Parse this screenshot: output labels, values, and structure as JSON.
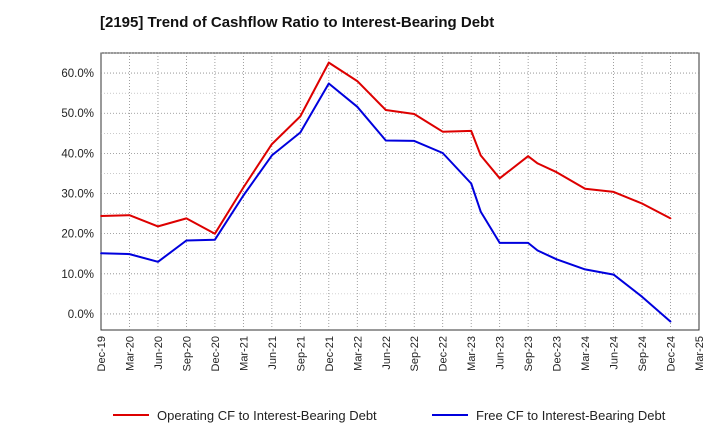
{
  "chart_data": {
    "type": "line",
    "title": "[2195]  Trend of Cashflow Ratio to Interest-Bearing Debt",
    "xlabel": "",
    "ylabel": "",
    "x_ticks": [
      "Dec-19",
      "Mar-20",
      "Jun-20",
      "Sep-20",
      "Dec-20",
      "Mar-21",
      "Jun-21",
      "Sep-21",
      "Dec-21",
      "Mar-22",
      "Jun-22",
      "Sep-22",
      "Dec-22",
      "Mar-23",
      "Jun-23",
      "Sep-23",
      "Dec-23",
      "Mar-24",
      "Jun-24",
      "Sep-24",
      "Dec-24",
      "Mar-25"
    ],
    "y_ticks": [
      "0.0%",
      "10.0%",
      "20.0%",
      "30.0%",
      "40.0%",
      "50.0%",
      "60.0%"
    ],
    "ylim": [
      -4,
      65
    ],
    "grid": true,
    "legend_position": "bottom",
    "series": [
      {
        "name": "Operating CF to Interest-Bearing Debt",
        "color": "#dd0000",
        "points": [
          [
            "Dec-19",
            24.4
          ],
          [
            "Mar-20",
            24.6
          ],
          [
            "Jun-20",
            21.8
          ],
          [
            "Sep-20",
            23.8
          ],
          [
            "Dec-20",
            20.0
          ],
          [
            "Mar-21",
            31.5
          ],
          [
            "Jun-21",
            42.3
          ],
          [
            "Sep-21",
            49.2
          ],
          [
            "Dec-21",
            62.6
          ],
          [
            "Mar-22",
            58.0
          ],
          [
            "Jun-22",
            50.8
          ],
          [
            "Sep-22",
            49.8
          ],
          [
            "Dec-22",
            45.4
          ],
          [
            "Mar-23",
            45.6
          ],
          [
            "Apr-23",
            39.5
          ],
          [
            "Jun-23",
            33.8
          ],
          [
            "Sep-23",
            39.3
          ],
          [
            "Oct-23",
            37.5
          ],
          [
            "Dec-23",
            35.3
          ],
          [
            "Mar-24",
            31.2
          ],
          [
            "Jun-24",
            30.4
          ],
          [
            "Sep-24",
            27.5
          ],
          [
            "Dec-24",
            23.8
          ]
        ]
      },
      {
        "name": "Free CF to Interest-Bearing Debt",
        "color": "#0000dd",
        "points": [
          [
            "Dec-19",
            15.1
          ],
          [
            "Mar-20",
            14.9
          ],
          [
            "Jun-20",
            13.0
          ],
          [
            "Sep-20",
            18.3
          ],
          [
            "Dec-20",
            18.5
          ],
          [
            "Mar-21",
            29.5
          ],
          [
            "Jun-21",
            39.5
          ],
          [
            "Sep-21",
            45.2
          ],
          [
            "Dec-21",
            57.4
          ],
          [
            "Mar-22",
            51.6
          ],
          [
            "Jun-22",
            43.2
          ],
          [
            "Sep-22",
            43.1
          ],
          [
            "Dec-22",
            40.1
          ],
          [
            "Mar-23",
            32.5
          ],
          [
            "Apr-23",
            25.5
          ],
          [
            "Jun-23",
            17.7
          ],
          [
            "Sep-23",
            17.7
          ],
          [
            "Oct-23",
            15.8
          ],
          [
            "Dec-23",
            13.6
          ],
          [
            "Mar-24",
            11.1
          ],
          [
            "Jun-24",
            9.8
          ],
          [
            "Sep-24",
            4.3
          ],
          [
            "Dec-24",
            -1.9
          ]
        ]
      }
    ]
  }
}
